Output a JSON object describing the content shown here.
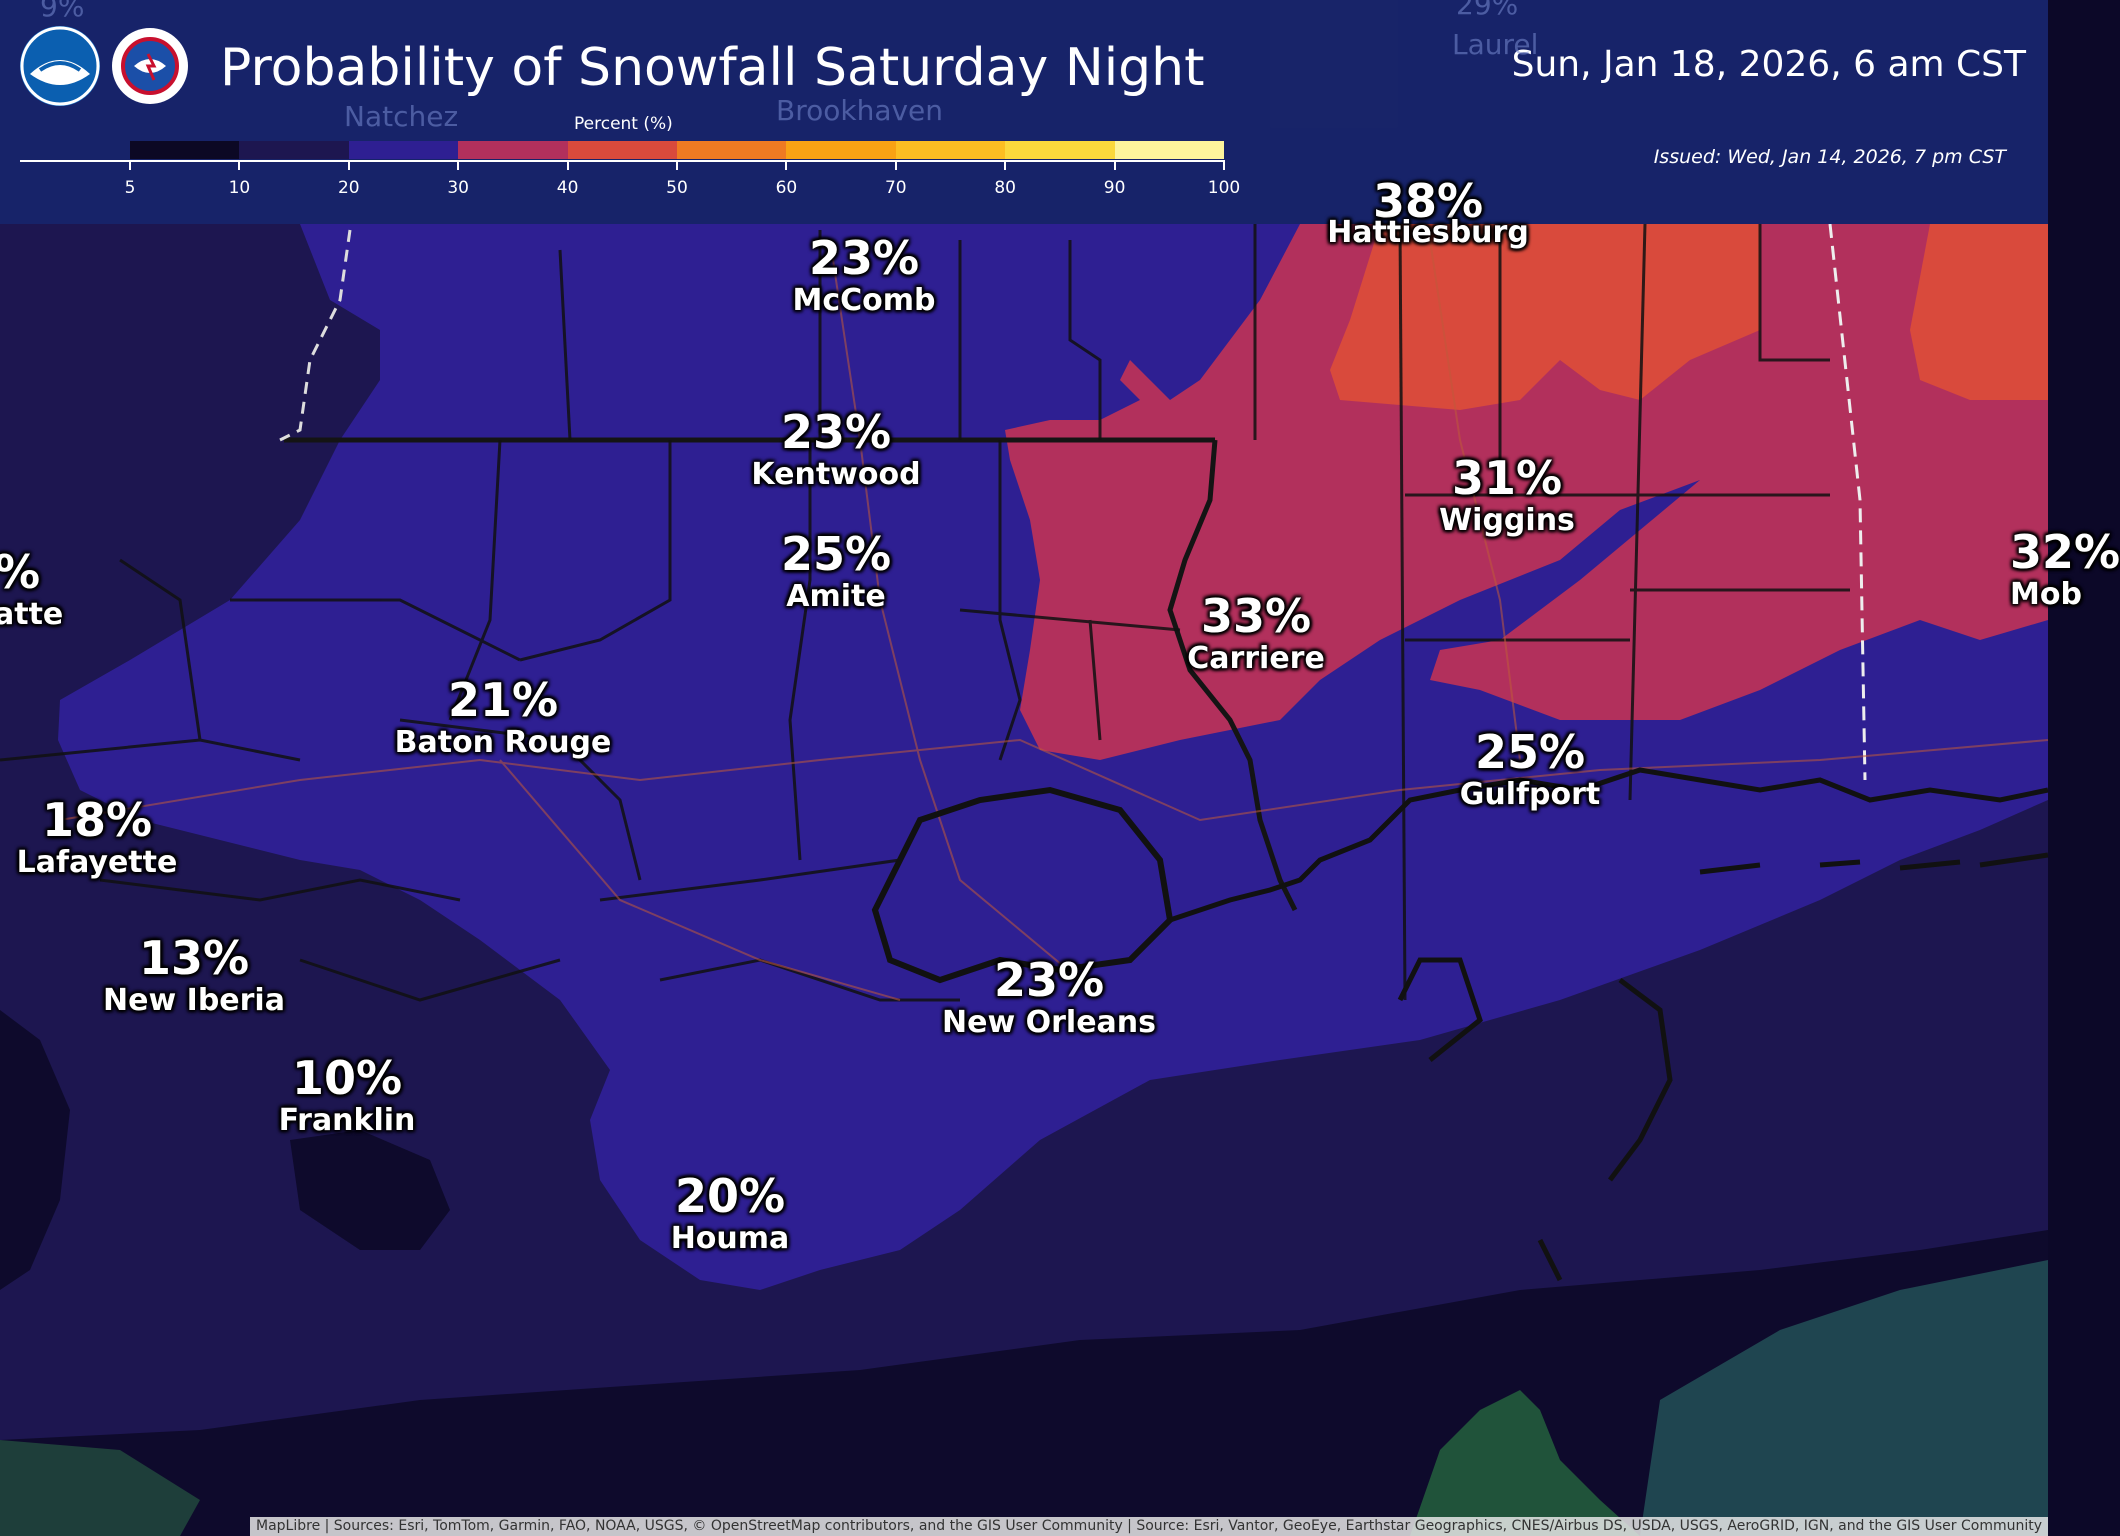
{
  "header": {
    "title": "Probability of Snowfall Saturday Night",
    "valid_time": "Sun, Jan 18, 2026, 6 am CST",
    "issued": "Issued: Wed, Jan 14, 2026, 7 pm CST",
    "logos": [
      "noaa-logo",
      "national-weather-service-logo"
    ]
  },
  "legend": {
    "title": "Percent (%)",
    "ticks": [
      "5",
      "10",
      "20",
      "30",
      "40",
      "50",
      "60",
      "70",
      "80",
      "90",
      "100"
    ],
    "colors": [
      "#0c0824",
      "#1d1650",
      "#2e1f92",
      "#b2305c",
      "#d94a3c",
      "#ef7a22",
      "#f9a214",
      "#fcbe22",
      "#fbd83c",
      "#fdf49c"
    ]
  },
  "background_labels": {
    "natchez": "Natchez",
    "brookhaven": "Brookhaven",
    "laurel": "Laurel",
    "pct_top_left": "9%",
    "pct_top_right": "29%",
    "pct_hattiesburg": "38%"
  },
  "locations": [
    {
      "pct": "23%",
      "city": "McComb"
    },
    {
      "pct": "23%",
      "city": "Kentwood"
    },
    {
      "pct": "25%",
      "city": "Amite"
    },
    {
      "pct": "21%",
      "city": "Baton Rouge"
    },
    {
      "pct": "18%",
      "city": "Lafayette"
    },
    {
      "pct": "13%",
      "city": "New Iberia"
    },
    {
      "pct": "10%",
      "city": "Franklin"
    },
    {
      "pct": "20%",
      "city": "Houma"
    },
    {
      "pct": "23%",
      "city": "New Orleans"
    },
    {
      "pct": "33%",
      "city": "Carriere"
    },
    {
      "pct": "31%",
      "city": "Wiggins"
    },
    {
      "pct": "25%",
      "city": "Gulfport"
    },
    {
      "pct": "32%",
      "city": "Mob"
    },
    {
      "pct": "%",
      "city": "atte"
    },
    {
      "city": "Hattiesburg"
    }
  ],
  "attribution": "MapLibre | Sources: Esri, TomTom, Garmin, FAO, NOAA, USGS, © OpenStreetMap contributors, and the GIS User Community | Source: Esri, Vantor, GeoEye, Earthstar Geographics, CNES/Airbus DS, USDA, USGS, AeroGRID, IGN, and the GIS User Community"
}
